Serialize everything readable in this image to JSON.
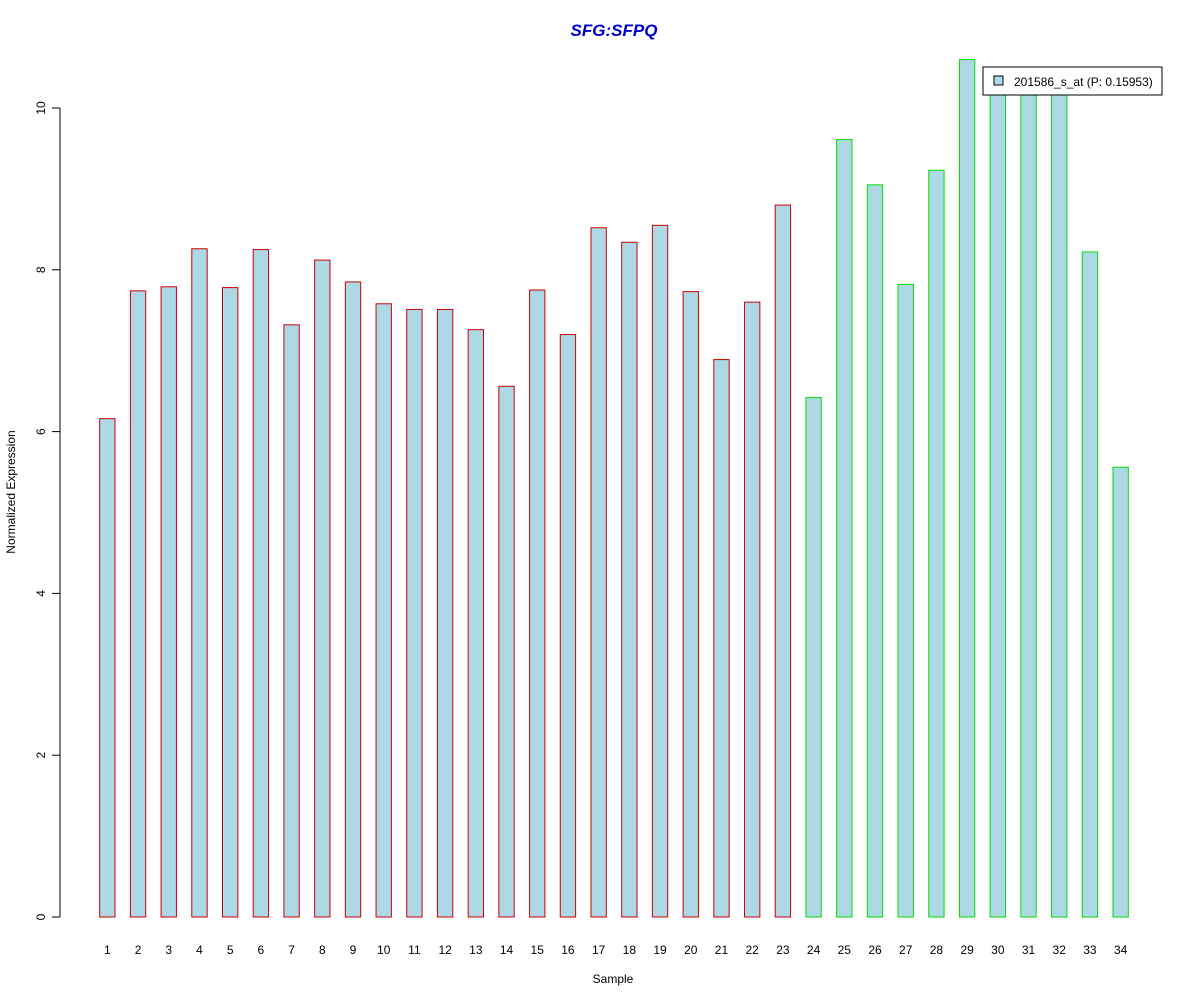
{
  "chart_data": {
    "type": "bar",
    "title": "SFG:SFPQ",
    "xlabel": "Sample",
    "ylabel": "Normalized Expression",
    "ylim": [
      0,
      10.6
    ],
    "yticks": [
      0,
      2,
      4,
      6,
      8,
      10
    ],
    "categories": [
      "1",
      "2",
      "3",
      "4",
      "5",
      "6",
      "7",
      "8",
      "9",
      "10",
      "11",
      "12",
      "13",
      "14",
      "15",
      "16",
      "17",
      "18",
      "19",
      "20",
      "21",
      "22",
      "23",
      "24",
      "25",
      "26",
      "27",
      "28",
      "29",
      "30",
      "31",
      "32",
      "33",
      "34"
    ],
    "series": [
      {
        "name": "201586_s_at (P: 0.15953)",
        "values": [
          6.16,
          7.74,
          7.79,
          8.26,
          7.78,
          8.25,
          7.32,
          8.12,
          7.85,
          7.58,
          7.51,
          7.51,
          7.26,
          6.56,
          7.75,
          7.2,
          8.52,
          8.34,
          8.55,
          7.73,
          6.89,
          7.6,
          8.8,
          6.42,
          9.61,
          9.05,
          7.82,
          9.23,
          10.6,
          10.2,
          10.2,
          10.2,
          8.22,
          5.56
        ]
      }
    ],
    "group_edge_colors": [
      "#cc0000",
      "#cc0000",
      "#cc0000",
      "#cc0000",
      "#cc0000",
      "#cc0000",
      "#cc0000",
      "#cc0000",
      "#cc0000",
      "#cc0000",
      "#cc0000",
      "#cc0000",
      "#cc0000",
      "#cc0000",
      "#cc0000",
      "#cc0000",
      "#cc0000",
      "#cc0000",
      "#cc0000",
      "#cc0000",
      "#cc0000",
      "#cc0000",
      "#cc0000",
      "#00dd00",
      "#00dd00",
      "#00dd00",
      "#00dd00",
      "#00dd00",
      "#00dd00",
      "#00dd00",
      "#00dd00",
      "#00dd00",
      "#00dd00",
      "#00dd00"
    ],
    "bar_fill": "#add8e6",
    "title_color": "#0000cc",
    "legend": {
      "position": "top-right",
      "label": "201586_s_at (P: 0.15953)"
    },
    "grid": false
  }
}
